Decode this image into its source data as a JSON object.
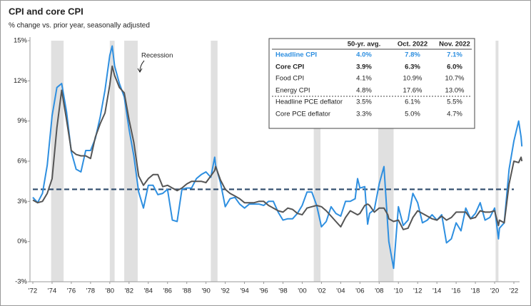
{
  "chart_data": {
    "type": "line",
    "title": "CPI and core CPI",
    "subtitle": "% change vs. prior year, seasonally adjusted",
    "annotation": "Recession",
    "x": [
      1972,
      1972.5,
      1973,
      1973.5,
      1974,
      1974.5,
      1975,
      1975.5,
      1976,
      1976.5,
      1977,
      1977.5,
      1978,
      1978.5,
      1979,
      1979.5,
      1980,
      1980.25,
      1980.5,
      1981,
      1981.5,
      1982,
      1982.5,
      1983,
      1983.5,
      1984,
      1984.5,
      1985,
      1985.5,
      1986,
      1986.5,
      1987,
      1987.5,
      1988,
      1988.5,
      1989,
      1989.5,
      1990,
      1990.5,
      1990.9,
      1991,
      1991.5,
      1992,
      1992.5,
      1993,
      1993.5,
      1994,
      1994.5,
      1995,
      1995.5,
      1996,
      1996.5,
      1997,
      1997.5,
      1998,
      1998.5,
      1999,
      1999.5,
      2000,
      2000.5,
      2001,
      2001.5,
      2002,
      2002.5,
      2003,
      2003.5,
      2004,
      2004.5,
      2005,
      2005.5,
      2005.75,
      2006,
      2006.5,
      2006.8,
      2007,
      2007.5,
      2008,
      2008.5,
      2008.9,
      2009,
      2009.5,
      2010,
      2010.5,
      2011,
      2011.5,
      2012,
      2012.5,
      2013,
      2013.5,
      2014,
      2014.5,
      2015,
      2015.5,
      2016,
      2016.5,
      2017,
      2017.5,
      2018,
      2018.5,
      2019,
      2019.5,
      2020,
      2020.4,
      2020.5,
      2021,
      2021.5,
      2022,
      2022.5,
      2022.75,
      2022.83
    ],
    "series": [
      {
        "name": "Headline CPI",
        "color": "#2e8fe0",
        "values": [
          3.3,
          2.9,
          3.6,
          5.7,
          9.4,
          11.5,
          11.8,
          9.7,
          6.7,
          5.4,
          5.2,
          6.8,
          6.8,
          7.7,
          9.3,
          11.3,
          13.9,
          14.6,
          13.1,
          11.8,
          10.8,
          8.4,
          6.4,
          3.7,
          2.5,
          4.2,
          4.2,
          3.5,
          3.6,
          3.9,
          1.6,
          1.5,
          3.9,
          4.0,
          4.0,
          4.7,
          5.0,
          5.2,
          4.8,
          6.3,
          5.7,
          4.4,
          2.6,
          3.2,
          3.3,
          2.8,
          2.5,
          2.8,
          2.8,
          2.8,
          2.7,
          3.0,
          3.0,
          2.2,
          1.6,
          1.7,
          1.7,
          2.1,
          2.7,
          3.7,
          3.7,
          2.7,
          1.1,
          1.5,
          2.6,
          2.1,
          1.9,
          3.0,
          3.0,
          3.2,
          4.7,
          4.0,
          4.1,
          1.3,
          2.1,
          2.4,
          4.3,
          5.6,
          1.1,
          0.0,
          -2.0,
          2.6,
          1.2,
          1.6,
          3.6,
          2.9,
          1.4,
          1.6,
          2.0,
          1.6,
          2.0,
          -0.1,
          0.2,
          1.4,
          0.8,
          2.5,
          1.7,
          2.1,
          2.9,
          1.6,
          1.8,
          2.5,
          0.2,
          1.0,
          1.4,
          5.4,
          7.5,
          9.0,
          7.8,
          7.1
        ]
      },
      {
        "name": "Core CPI",
        "color": "#555555",
        "values": [
          3.1,
          2.9,
          3.0,
          3.6,
          4.7,
          8.5,
          11.3,
          9.1,
          6.8,
          6.5,
          6.4,
          6.4,
          6.2,
          7.8,
          8.8,
          9.6,
          11.7,
          13.1,
          12.4,
          11.5,
          11.1,
          9.1,
          7.4,
          4.9,
          4.2,
          4.7,
          5.0,
          5.0,
          4.1,
          4.2,
          4.0,
          3.8,
          4.0,
          4.3,
          4.5,
          4.5,
          4.5,
          4.4,
          4.9,
          5.3,
          5.6,
          4.6,
          3.9,
          3.6,
          3.4,
          3.2,
          2.9,
          2.9,
          2.9,
          3.0,
          3.0,
          2.7,
          2.5,
          2.3,
          2.2,
          2.5,
          2.4,
          2.1,
          2.0,
          2.5,
          2.6,
          2.7,
          2.6,
          2.3,
          1.9,
          1.5,
          1.1,
          1.8,
          2.3,
          2.1,
          2.0,
          2.1,
          2.7,
          2.8,
          2.7,
          2.2,
          2.5,
          2.5,
          2.0,
          1.7,
          1.5,
          1.6,
          0.9,
          1.0,
          1.8,
          2.3,
          2.1,
          1.9,
          1.7,
          1.6,
          1.9,
          1.6,
          1.8,
          2.2,
          2.2,
          2.2,
          1.7,
          1.8,
          2.3,
          2.2,
          2.2,
          2.3,
          1.2,
          1.6,
          1.4,
          4.3,
          6.0,
          5.9,
          6.3,
          6.0
        ]
      }
    ],
    "average_line": {
      "value": 3.9,
      "color": "#2d4a6b"
    },
    "recessions": [
      [
        1973.9,
        1975.2
      ],
      [
        1980.0,
        1980.5
      ],
      [
        1981.5,
        1982.9
      ],
      [
        1990.5,
        1991.2
      ],
      [
        2001.2,
        2001.9
      ],
      [
        2007.9,
        2009.5
      ],
      [
        2020.1,
        2020.4
      ]
    ],
    "xlim": [
      1972,
      2022
    ],
    "xticks": [
      {
        "value": 1972,
        "label": "'72"
      },
      {
        "value": 1974,
        "label": "'74"
      },
      {
        "value": 1976,
        "label": "'76"
      },
      {
        "value": 1978,
        "label": "'78"
      },
      {
        "value": 1980,
        "label": "'80"
      },
      {
        "value": 1982,
        "label": "'82"
      },
      {
        "value": 1984,
        "label": "'84"
      },
      {
        "value": 1986,
        "label": "'86"
      },
      {
        "value": 1988,
        "label": "'88"
      },
      {
        "value": 1990,
        "label": "'90"
      },
      {
        "value": 1992,
        "label": "'92"
      },
      {
        "value": 1994,
        "label": "'94"
      },
      {
        "value": 1996,
        "label": "'96"
      },
      {
        "value": 1998,
        "label": "'98"
      },
      {
        "value": 2000,
        "label": "'00"
      },
      {
        "value": 2002,
        "label": "'02"
      },
      {
        "value": 2004,
        "label": "'04"
      },
      {
        "value": 2006,
        "label": "'06"
      },
      {
        "value": 2008,
        "label": "'08"
      },
      {
        "value": 2010,
        "label": "'10"
      },
      {
        "value": 2012,
        "label": "'12"
      },
      {
        "value": 2014,
        "label": "'14"
      },
      {
        "value": 2016,
        "label": "'16"
      },
      {
        "value": 2018,
        "label": "'18"
      },
      {
        "value": 2020,
        "label": "'20"
      },
      {
        "value": 2022,
        "label": "'22"
      }
    ],
    "ylim": [
      -3,
      15
    ],
    "yticks": [
      {
        "value": -3,
        "label": "-3%"
      },
      {
        "value": 0,
        "label": "0%"
      },
      {
        "value": 3,
        "label": "3%"
      },
      {
        "value": 6,
        "label": "6%"
      },
      {
        "value": 9,
        "label": "9%"
      },
      {
        "value": 12,
        "label": "12%"
      },
      {
        "value": 15,
        "label": "15%"
      }
    ],
    "table": {
      "columns": [
        "50-yr. avg.",
        "Oct. 2022",
        "Nov. 2022"
      ],
      "rows": [
        [
          "Headline CPI",
          "4.0%",
          "7.8%",
          "7.1%"
        ],
        [
          "Core CPI",
          "3.9%",
          "6.3%",
          "6.0%"
        ],
        [
          "Food CPI",
          "4.1%",
          "10.9%",
          "10.7%"
        ],
        [
          "Energy CPI",
          "4.8%",
          "17.6%",
          "13.0%"
        ],
        [
          "Headline PCE deflator",
          "3.5%",
          "6.1%",
          "5.5%"
        ],
        [
          "Core PCE deflator",
          "3.3%",
          "5.0%",
          "4.7%"
        ]
      ]
    }
  }
}
